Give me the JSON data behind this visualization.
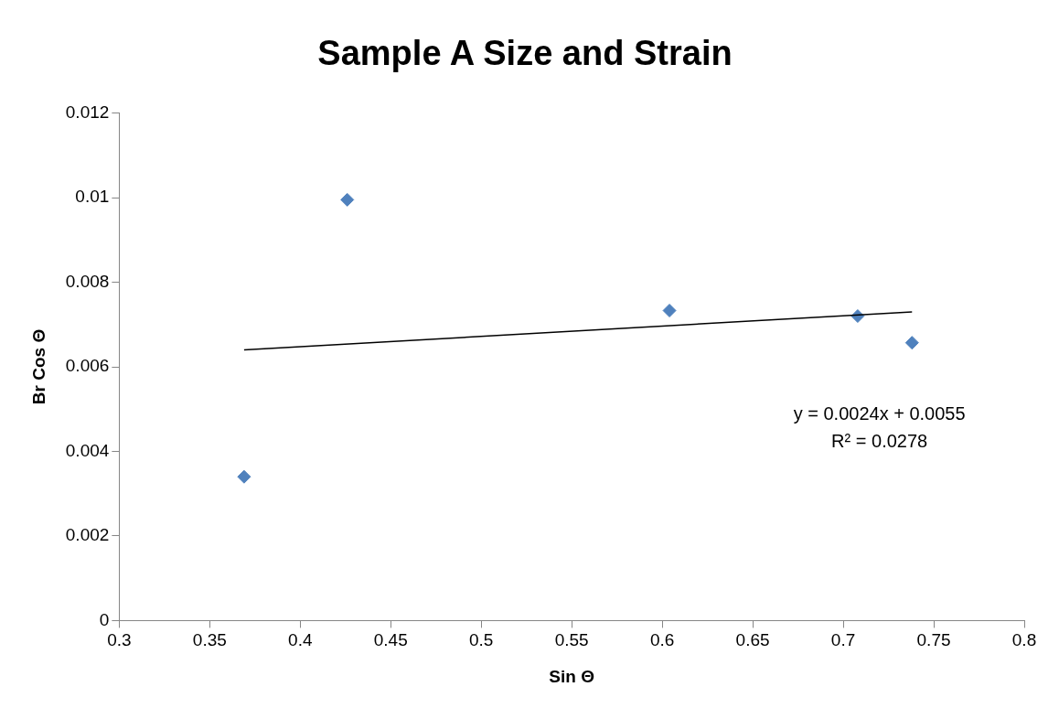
{
  "chart_data": {
    "type": "scatter",
    "title": "Sample A Size and Strain",
    "xlabel": "Sin Θ",
    "ylabel": "Br Cos Θ",
    "xlim": [
      0.3,
      0.8
    ],
    "xticks": [
      0.3,
      0.35,
      0.4,
      0.45,
      0.5,
      0.55,
      0.6,
      0.65,
      0.7,
      0.75,
      0.8
    ],
    "ylim": [
      0,
      0.012
    ],
    "yticks": [
      0,
      0.002,
      0.004,
      0.006,
      0.008,
      0.01,
      0.012
    ],
    "grid": false,
    "legend": false,
    "marker": "diamond",
    "series": [
      {
        "type": "scatter",
        "color": "#4f81bd",
        "x": [
          0.369,
          0.426,
          0.604,
          0.708,
          0.738
        ],
        "values": [
          0.0034,
          0.00995,
          0.00733,
          0.0072,
          0.00657
        ]
      },
      {
        "type": "line",
        "color": "#000000",
        "marker": "none",
        "x": [
          0.369,
          0.738
        ],
        "values": [
          0.0064,
          0.0073
        ]
      }
    ],
    "annotations": [
      "y = 0.0024x + 0.0055",
      "R² = 0.0278"
    ]
  }
}
